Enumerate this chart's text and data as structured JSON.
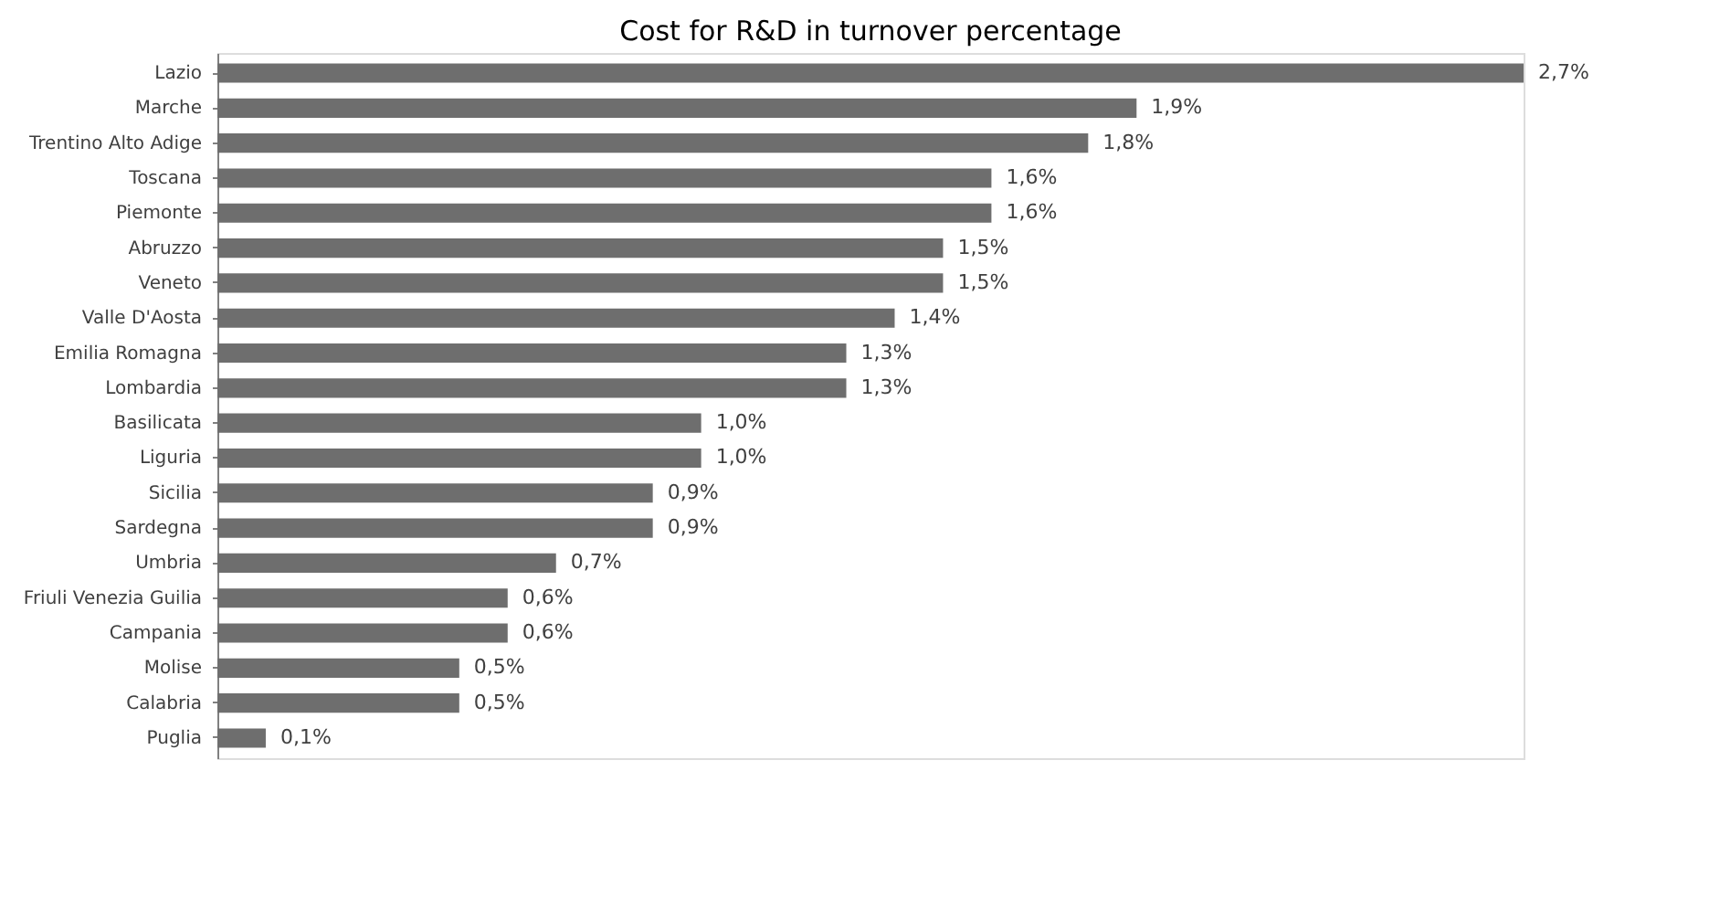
{
  "chart_data": {
    "type": "bar",
    "orientation": "horizontal",
    "title": "Cost for R&D in turnover percentage",
    "categories": [
      "Lazio",
      "Marche",
      "Trentino Alto Adige",
      "Toscana",
      "Piemonte",
      "Abruzzo",
      "Veneto",
      "Valle D'Aosta",
      "Emilia Romagna",
      "Lombardia",
      "Basilicata",
      "Liguria",
      "Sicilia",
      "Sardegna",
      "Umbria",
      "Friuli Venezia Guilia",
      "Campania",
      "Molise",
      "Calabria",
      "Puglia"
    ],
    "values": [
      2.7,
      1.9,
      1.8,
      1.6,
      1.6,
      1.5,
      1.5,
      1.4,
      1.3,
      1.3,
      1.0,
      1.0,
      0.9,
      0.9,
      0.7,
      0.6,
      0.6,
      0.5,
      0.5,
      0.1
    ],
    "value_labels": [
      "2,7%",
      "1,9%",
      "1,8%",
      "1,6%",
      "1,6%",
      "1,5%",
      "1,5%",
      "1,4%",
      "1,3%",
      "1,3%",
      "1,0%",
      "1,0%",
      "0,9%",
      "0,9%",
      "0,7%",
      "0,6%",
      "0,6%",
      "0,5%",
      "0,5%",
      "0,1%"
    ],
    "color": "#6e6e6e",
    "grid": false
  }
}
